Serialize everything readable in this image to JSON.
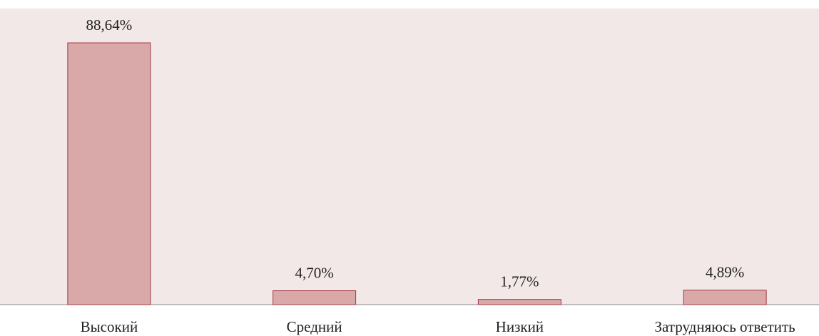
{
  "chart_data": {
    "type": "bar",
    "categories": [
      "Высокий",
      "Средний",
      "Низкий",
      "Затрудняюсь ответить"
    ],
    "values": [
      88.64,
      4.7,
      1.77,
      4.89
    ],
    "value_labels": [
      "88,64%",
      "4,70%",
      "1,77%",
      "4,89%"
    ],
    "color": "#d9a9aa",
    "edge_color": "#a3363c",
    "background": "#f3e8e8"
  }
}
